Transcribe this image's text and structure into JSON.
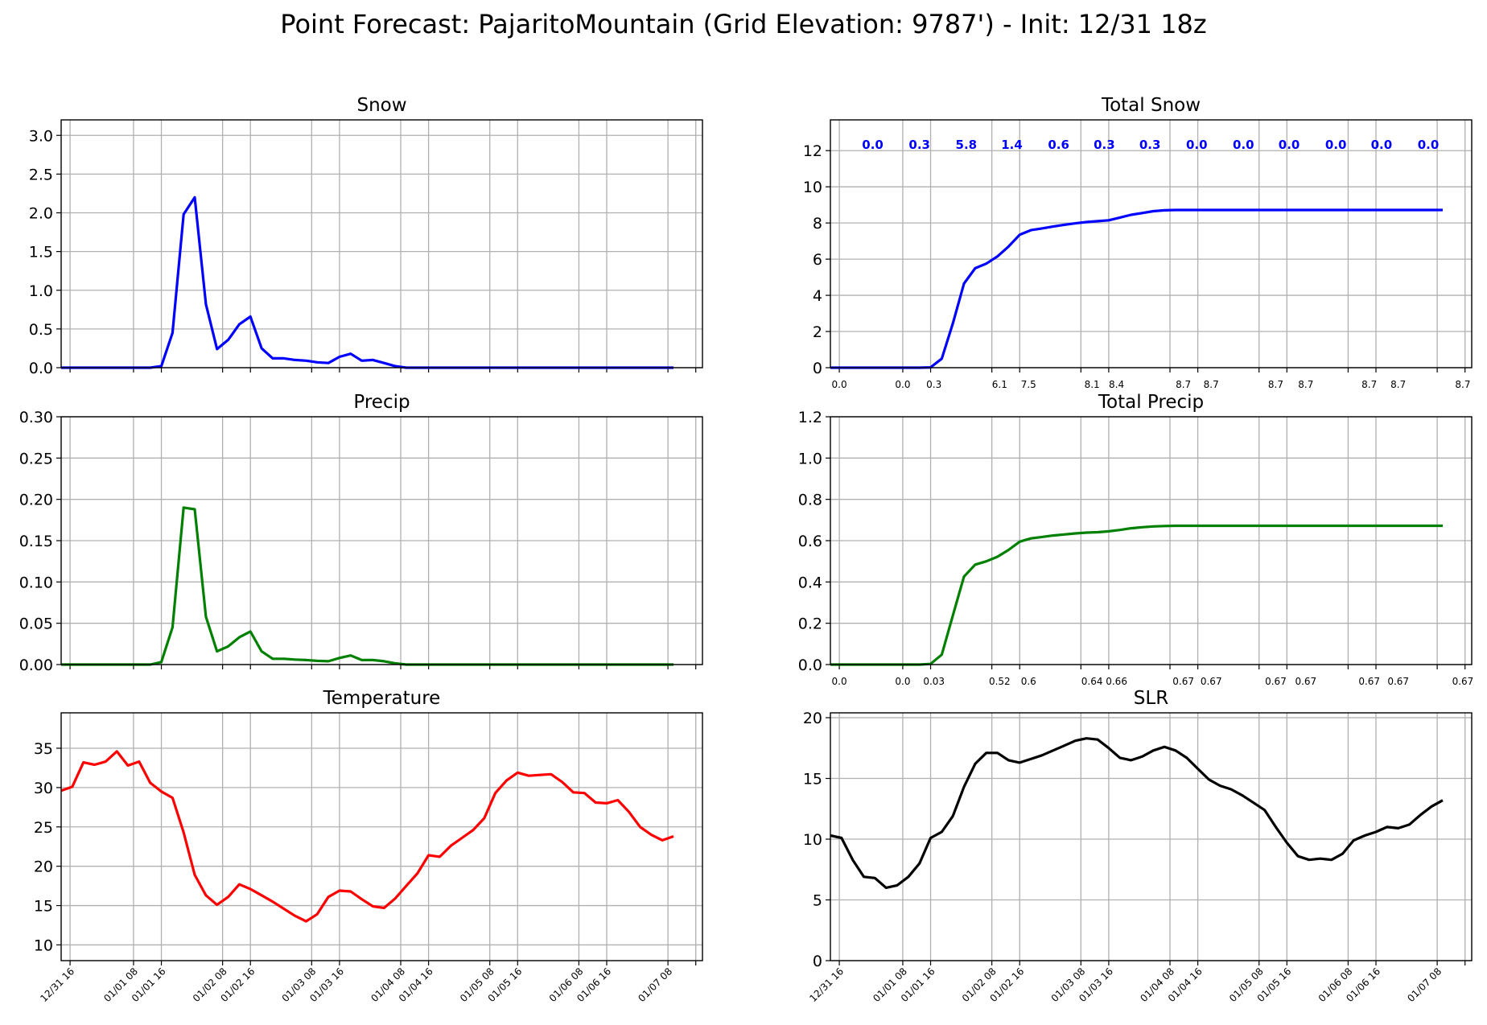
{
  "title": "Point Forecast: PajaritoMountain (Grid Elevation: 9787') - Init: 12/31 18z",
  "colors": {
    "snow": "#0000ff",
    "precip": "#008000",
    "temperature": "#ff0000",
    "slr": "#000000",
    "grid": "#b0b0b0"
  },
  "chart_data": [
    {
      "id": "snow",
      "type": "line",
      "title": "Snow",
      "color": "#0000ff",
      "ylim": [
        0,
        3.2
      ],
      "yticks": [
        "0.0",
        "0.5",
        "1.0",
        "1.5",
        "2.0",
        "2.5",
        "3.0"
      ],
      "grid": true,
      "values": [
        0,
        0,
        0,
        0,
        0,
        0,
        0,
        0,
        0,
        0.02,
        0.45,
        1.98,
        2.2,
        0.82,
        0.24,
        0.36,
        0.56,
        0.66,
        0.25,
        0.12,
        0.12,
        0.1,
        0.09,
        0.07,
        0.06,
        0.14,
        0.18,
        0.09,
        0.1,
        0.06,
        0.02,
        0,
        0,
        0,
        0,
        0,
        0,
        0,
        0,
        0,
        0,
        0,
        0,
        0,
        0,
        0,
        0,
        0,
        0,
        0,
        0,
        0,
        0,
        0,
        0,
        0
      ]
    },
    {
      "id": "total_snow",
      "type": "line",
      "title": "Total Snow",
      "color": "#0000ff",
      "ylim": [
        0,
        13.7
      ],
      "yticks": [
        "0",
        "2",
        "4",
        "6",
        "8",
        "10",
        "12"
      ],
      "grid": true,
      "values": [
        0,
        0,
        0,
        0,
        0,
        0,
        0,
        0,
        0,
        0.02,
        0.5,
        2.45,
        4.65,
        5.5,
        5.75,
        6.15,
        6.7,
        7.35,
        7.6,
        7.7,
        7.8,
        7.9,
        7.98,
        8.05,
        8.1,
        8.15,
        8.3,
        8.45,
        8.55,
        8.65,
        8.7,
        8.72,
        8.72,
        8.72,
        8.72,
        8.72,
        8.72,
        8.72,
        8.72,
        8.72,
        8.72,
        8.72,
        8.72,
        8.72,
        8.72,
        8.72,
        8.72,
        8.72,
        8.72,
        8.72,
        8.72,
        8.72,
        8.72,
        8.72,
        8.72,
        8.72
      ],
      "tick_values": [
        "0.0",
        "0.0",
        "0.3",
        "6.1",
        "7.5",
        "8.1",
        "8.4",
        "8.7",
        "8.7",
        "8.7",
        "8.7",
        "8.7",
        "8.7",
        "8.7"
      ],
      "period_totals": [
        "0.0",
        "0.3",
        "5.8",
        "1.4",
        "0.6",
        "0.3",
        "0.3",
        "0.0",
        "0.0",
        "0.0",
        "0.0",
        "0.0",
        "0.0"
      ]
    },
    {
      "id": "precip",
      "type": "line",
      "title": "Precip",
      "color": "#008000",
      "ylim": [
        0,
        0.3
      ],
      "yticks": [
        "0.00",
        "0.05",
        "0.10",
        "0.15",
        "0.20",
        "0.25",
        "0.30"
      ],
      "grid": true,
      "values": [
        0,
        0,
        0,
        0,
        0,
        0,
        0,
        0,
        0,
        0.003,
        0.045,
        0.19,
        0.188,
        0.058,
        0.016,
        0.022,
        0.033,
        0.04,
        0.016,
        0.007,
        0.007,
        0.006,
        0.0055,
        0.0045,
        0.004,
        0.008,
        0.011,
        0.0055,
        0.0055,
        0.004,
        0.0015,
        0,
        0,
        0,
        0,
        0,
        0,
        0,
        0,
        0,
        0,
        0,
        0,
        0,
        0,
        0,
        0,
        0,
        0,
        0,
        0,
        0,
        0,
        0,
        0,
        0
      ]
    },
    {
      "id": "total_precip",
      "type": "line",
      "title": "Total Precip",
      "color": "#008000",
      "ylim": [
        0,
        1.2
      ],
      "yticks": [
        "0.0",
        "0.2",
        "0.4",
        "0.6",
        "0.8",
        "1.0",
        "1.2"
      ],
      "grid": true,
      "values": [
        0,
        0,
        0,
        0,
        0,
        0,
        0,
        0,
        0,
        0.003,
        0.048,
        0.238,
        0.426,
        0.484,
        0.5,
        0.522,
        0.555,
        0.595,
        0.611,
        0.618,
        0.625,
        0.63,
        0.635,
        0.639,
        0.641,
        0.645,
        0.652,
        0.66,
        0.665,
        0.669,
        0.671,
        0.672,
        0.672,
        0.672,
        0.672,
        0.672,
        0.672,
        0.672,
        0.672,
        0.672,
        0.672,
        0.672,
        0.672,
        0.672,
        0.672,
        0.672,
        0.672,
        0.672,
        0.672,
        0.672,
        0.672,
        0.672,
        0.672,
        0.672,
        0.672,
        0.672
      ],
      "tick_values": [
        "0.0",
        "0.0",
        "0.03",
        "0.52",
        "0.6",
        "0.64",
        "0.66",
        "0.67",
        "0.67",
        "0.67",
        "0.67",
        "0.67",
        "0.67",
        "0.67"
      ]
    },
    {
      "id": "temperature",
      "type": "line",
      "title": "Temperature",
      "color": "#ff0000",
      "ylim": [
        8,
        39.5
      ],
      "yticks": [
        "10",
        "15",
        "20",
        "25",
        "30",
        "35"
      ],
      "grid": true,
      "values": [
        29.6,
        30.1,
        33.2,
        32.9,
        33.3,
        34.6,
        32.8,
        33.3,
        30.6,
        29.5,
        28.7,
        24.3,
        18.9,
        16.3,
        15.1,
        16.1,
        17.7,
        17.1,
        16.3,
        15.5,
        14.6,
        13.7,
        13.0,
        13.9,
        16.1,
        16.9,
        16.8,
        15.8,
        14.9,
        14.7,
        15.9,
        17.5,
        19.1,
        21.4,
        21.2,
        22.6,
        23.6,
        24.6,
        26.1,
        29.3,
        30.9,
        31.9,
        31.5,
        31.6,
        31.7,
        30.7,
        29.4,
        29.3,
        28.1,
        28.0,
        28.4,
        26.9,
        25.0,
        24.0,
        23.3,
        23.8
      ],
      "xticks": [
        "12/31 16",
        "01/01 08",
        "01/01 16",
        "01/02 08",
        "01/02 16",
        "01/03 08",
        "01/03 16",
        "01/04 08",
        "01/04 16",
        "01/05 08",
        "01/05 16",
        "01/06 08",
        "01/06 16",
        "01/07 08"
      ]
    },
    {
      "id": "slr",
      "type": "line",
      "title": "SLR",
      "color": "#000000",
      "ylim": [
        0,
        20.4
      ],
      "yticks": [
        "0",
        "5",
        "10",
        "15",
        "20"
      ],
      "grid": true,
      "values": [
        10.3,
        10.1,
        8.3,
        6.9,
        6.8,
        6.0,
        6.2,
        6.9,
        8.0,
        10.1,
        10.6,
        11.9,
        14.3,
        16.2,
        17.1,
        17.1,
        16.5,
        16.3,
        16.6,
        16.9,
        17.3,
        17.7,
        18.1,
        18.3,
        18.2,
        17.5,
        16.7,
        16.5,
        16.8,
        17.3,
        17.6,
        17.3,
        16.7,
        15.8,
        14.9,
        14.4,
        14.1,
        13.6,
        13.0,
        12.4,
        11.0,
        9.7,
        8.6,
        8.3,
        8.4,
        8.3,
        8.8,
        9.9,
        10.3,
        10.6,
        11.0,
        10.9,
        11.2,
        12.0,
        12.7,
        13.2
      ],
      "xticks": [
        "12/31 16",
        "01/01 08",
        "01/01 16",
        "01/02 08",
        "01/02 16",
        "01/03 08",
        "01/03 16",
        "01/04 08",
        "01/04 16",
        "01/05 08",
        "01/05 16",
        "01/06 08",
        "01/06 16",
        "01/07 08"
      ]
    }
  ]
}
